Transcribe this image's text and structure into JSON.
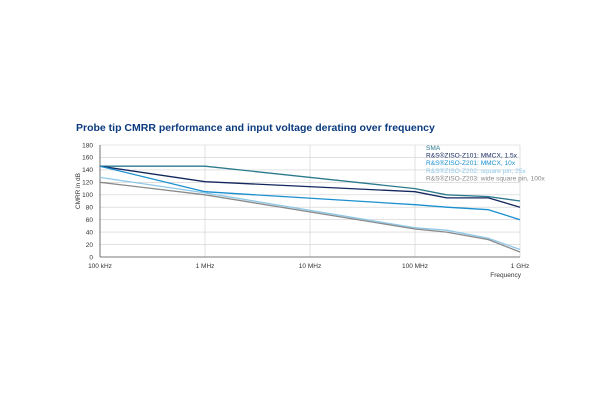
{
  "chart_data": {
    "type": "line",
    "title": "Probe tip CMRR performance and input voltage derating over frequency",
    "xlabel": "Frequency",
    "ylabel": "CMRR in dB",
    "x_scale": "log",
    "xlim": [
      100000,
      1000000000
    ],
    "ylim": [
      0,
      180
    ],
    "x_ticks": [
      {
        "value": 100000,
        "label": "100 kHz"
      },
      {
        "value": 1000000,
        "label": "1 MHz"
      },
      {
        "value": 10000000,
        "label": "10 MHz"
      },
      {
        "value": 100000000,
        "label": "100 MHz"
      },
      {
        "value": 1000000000,
        "label": "1 GHz"
      }
    ],
    "y_ticks": [
      0,
      20,
      40,
      60,
      80,
      100,
      120,
      140,
      160,
      180
    ],
    "legend_position": "top-right",
    "series": [
      {
        "name": "SMA",
        "color": "#2a7a8c",
        "x": [
          100000,
          1000000,
          100000000,
          200000000,
          500000000,
          1000000000
        ],
        "y": [
          146,
          146,
          110,
          100,
          97,
          90
        ]
      },
      {
        "name": "R&S®ZISO-Z101: MMCX, 1.5x",
        "color": "#13275f",
        "x": [
          100000,
          1000000,
          100000000,
          200000000,
          500000000,
          1000000000
        ],
        "y": [
          146,
          121,
          105,
          95,
          95,
          80
        ]
      },
      {
        "name": "R&S®ZISO-Z201: MMCX, 10x",
        "color": "#1a8fd0",
        "x": [
          100000,
          1000000,
          100000000,
          200000000,
          500000000,
          1000000000
        ],
        "y": [
          146,
          105,
          84,
          80,
          76,
          60
        ]
      },
      {
        "name": "R&S®ZISO-Z202: square pin, 25x",
        "color": "#8fc8e8",
        "x": [
          100000,
          1000000,
          100000000,
          200000000,
          500000000,
          1000000000
        ],
        "y": [
          128,
          103,
          47,
          43,
          30,
          12
        ]
      },
      {
        "name": "R&S®ZISO-Z203: wide square pin, 100x",
        "color": "#8a8a8a",
        "x": [
          100000,
          1000000,
          100000000,
          200000000,
          500000000,
          1000000000
        ],
        "y": [
          120,
          100,
          45,
          40,
          28,
          8
        ]
      }
    ]
  }
}
